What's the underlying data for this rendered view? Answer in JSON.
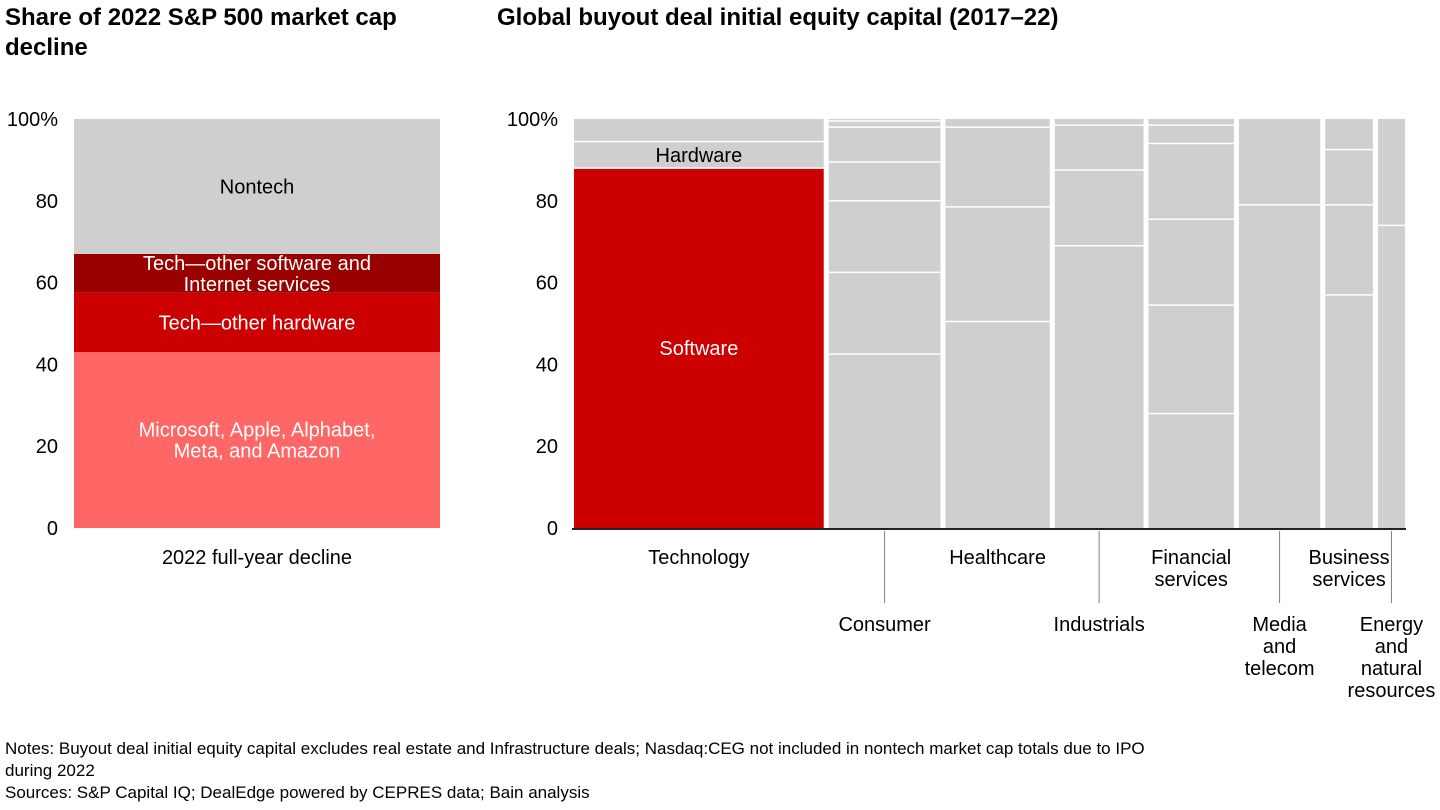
{
  "chart_data": [
    {
      "type": "bar",
      "stacked": true,
      "title": "Share of 2022 S&P 500 market cap decline",
      "xlabel": "",
      "ylabel": "",
      "ylim": [
        0,
        100
      ],
      "y_ticks": [
        "0",
        "20",
        "40",
        "60",
        "80",
        "100%"
      ],
      "y_tick_values": [
        0,
        20,
        40,
        60,
        80,
        100
      ],
      "categories": [
        "2022 full-year decline"
      ],
      "series": [
        {
          "name": "Microsoft, Apple, Alphabet, Meta, and Amazon",
          "label_lines": [
            "Microsoft, Apple, Alphabet,",
            "Meta, and Amazon"
          ],
          "values": [
            43
          ],
          "color": "#ff6666",
          "text_color": "#ffffff"
        },
        {
          "name": "Tech—other hardware",
          "label_lines": [
            "Tech—other hardware"
          ],
          "values": [
            14.5
          ],
          "color": "#cc0000",
          "text_color": "#ffffff"
        },
        {
          "name": "Tech—other software and Internet services",
          "label_lines": [
            "Tech—other software and",
            "Internet services"
          ],
          "values": [
            9.5
          ],
          "color": "#990000",
          "text_color": "#ffffff"
        },
        {
          "name": "Nontech",
          "label_lines": [
            "Nontech"
          ],
          "values": [
            33
          ],
          "color": "#cfcfcf",
          "text_color": "#000000"
        }
      ]
    },
    {
      "type": "bar",
      "subtype": "marimekko",
      "title": "Global buyout deal initial equity capital (2017–22)",
      "xlabel": "",
      "ylabel": "",
      "ylim": [
        0,
        100
      ],
      "y_ticks": [
        "0",
        "20",
        "40",
        "60",
        "80",
        "100%"
      ],
      "y_tick_values": [
        0,
        20,
        40,
        60,
        80,
        100
      ],
      "categories": [
        "Technology",
        "Consumer",
        "Healthcare",
        "Industrials",
        "Financial services",
        "Media and telecom",
        "Business services",
        "Energy and natural resources"
      ],
      "column_widths_pct": [
        30.4,
        13.6,
        12.7,
        10.8,
        10.4,
        9.9,
        5.8,
        3.3
      ],
      "category_label_lines": [
        [
          "Technology"
        ],
        [
          "Consumer"
        ],
        [
          "Healthcare"
        ],
        [
          "Industrials"
        ],
        [
          "Financial",
          "services"
        ],
        [
          "Media",
          "and",
          "telecom"
        ],
        [
          "Business",
          "services"
        ],
        [
          "Energy",
          "and",
          "natural",
          "resources"
        ]
      ],
      "label_row": [
        "top",
        "bottom",
        "top",
        "bottom",
        "top",
        "bottom",
        "top",
        "bottom"
      ],
      "segment_boundaries": [
        [
          88,
          94.5
        ],
        [
          42.5,
          62.5,
          80,
          89.5,
          98,
          99.5
        ],
        [
          50.5,
          78.5,
          98
        ],
        [
          69,
          87.5,
          98.5
        ],
        [
          28,
          54.5,
          75.5,
          94,
          98.5
        ],
        [
          79
        ],
        [
          57,
          79,
          92.5
        ],
        [
          74
        ]
      ],
      "highlight": {
        "column": "Technology",
        "segments": [
          {
            "name": "Software",
            "from": 0,
            "to": 88,
            "color": "#cc0000",
            "text_color": "#ffffff"
          },
          {
            "name": "Hardware",
            "from": 88,
            "to": 94.5,
            "color": "#cfcfcf",
            "text_color": "#000000"
          }
        ]
      },
      "default_color": "#cfcfcf"
    }
  ],
  "notes": {
    "line1": "Notes: Buyout deal initial equity capital excludes real estate and Infrastructure deals; Nasdaq:CEG not included in nontech market cap totals due to IPO",
    "line2": "during 2022",
    "sources": "Sources: S&P Capital IQ; DealEdge powered by CEPRES data; Bain analysis"
  }
}
